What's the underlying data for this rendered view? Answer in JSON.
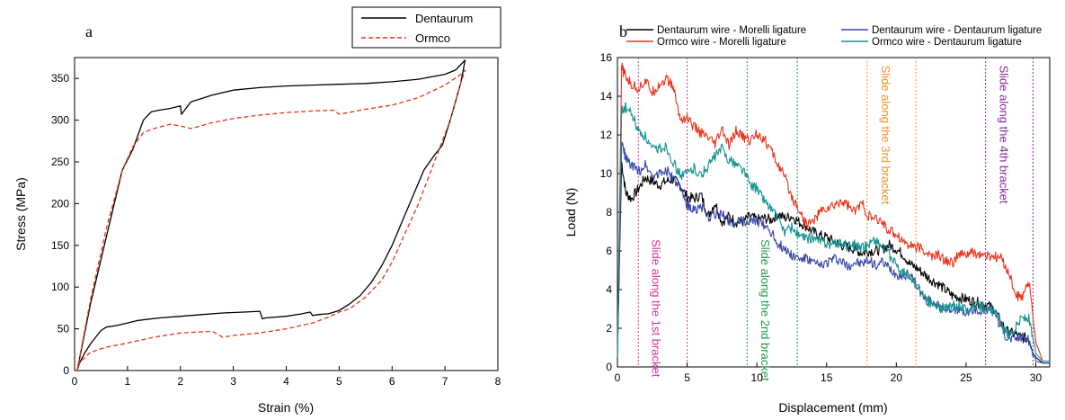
{
  "chart_data": [
    {
      "panel_label": "a",
      "type": "line",
      "xlabel": "Strain (%)",
      "ylabel": "Stress (MPa)",
      "xlim": [
        0,
        8
      ],
      "ylim": [
        0,
        375
      ],
      "xticks": [
        0,
        1,
        2,
        3,
        4,
        5,
        6,
        7,
        8
      ],
      "yticks": [
        0,
        50,
        100,
        150,
        200,
        250,
        300,
        350
      ],
      "legend_position": "top-right",
      "series": [
        {
          "name": "Dentaurum",
          "color": "#000000",
          "style": "solid",
          "x": [
            0.05,
            0.3,
            0.6,
            0.9,
            1.1,
            1.3,
            1.45,
            1.6,
            1.8,
            2.0,
            2.02,
            2.2,
            2.6,
            3.0,
            3.5,
            4.0,
            4.5,
            5.0,
            5.5,
            6.0,
            6.5,
            7.0,
            7.2,
            7.38,
            7.3,
            7.1,
            6.95,
            6.8,
            6.6,
            6.4,
            6.2,
            6.0,
            5.8,
            5.6,
            5.4,
            5.2,
            5.0,
            4.8,
            4.6,
            4.5,
            4.45,
            4.3,
            4.0,
            3.6,
            3.55,
            3.5,
            3.2,
            2.8,
            2.4,
            2.0,
            1.6,
            1.2,
            1.0,
            0.8,
            0.6,
            0.5,
            0.4,
            0.3,
            0.2,
            0.1,
            0.05
          ],
          "y": [
            0,
            80,
            160,
            240,
            265,
            300,
            310,
            312,
            314,
            317,
            307,
            322,
            330,
            336,
            339,
            341,
            342,
            343,
            344,
            346,
            349,
            355,
            360,
            372,
            345,
            300,
            270,
            258,
            240,
            210,
            180,
            150,
            125,
            105,
            90,
            80,
            72,
            68,
            67,
            66,
            70,
            68,
            65,
            63,
            62,
            71,
            70,
            69,
            67,
            65,
            63,
            60,
            57,
            54,
            52,
            48,
            40,
            32,
            22,
            10,
            0
          ]
        },
        {
          "name": "Ormco",
          "color": "#e8331c",
          "style": "dashed",
          "x": [
            0.05,
            0.3,
            0.6,
            0.9,
            1.1,
            1.3,
            1.5,
            1.8,
            2.0,
            2.2,
            2.6,
            3.0,
            3.5,
            4.0,
            4.5,
            4.9,
            5.0,
            5.5,
            6.0,
            6.5,
            7.0,
            7.3,
            7.38,
            7.3,
            7.1,
            6.8,
            6.5,
            6.2,
            6.0,
            5.8,
            5.5,
            5.2,
            5.0,
            4.8,
            4.5,
            4.0,
            3.5,
            3.0,
            2.8,
            2.6,
            2.0,
            1.5,
            1.0,
            0.6,
            0.3,
            0.1,
            0.05
          ],
          "y": [
            0,
            85,
            170,
            240,
            268,
            285,
            290,
            295,
            293,
            290,
            297,
            302,
            306,
            309,
            311,
            312,
            307,
            313,
            318,
            327,
            342,
            355,
            360,
            345,
            300,
            250,
            200,
            158,
            130,
            108,
            88,
            74,
            70,
            64,
            57,
            50,
            45,
            42,
            40,
            47,
            45,
            40,
            33,
            28,
            22,
            10,
            0
          ]
        }
      ]
    },
    {
      "panel_label": "b",
      "type": "line",
      "xlabel": "Displacement (mm)",
      "ylabel": "Load (N)",
      "xlim": [
        0,
        31
      ],
      "ylim": [
        0,
        16
      ],
      "xticks": [
        0,
        5,
        10,
        15,
        20,
        25,
        30
      ],
      "yticks": [
        0,
        2,
        4,
        6,
        8,
        10,
        12,
        14,
        16
      ],
      "legend_position": "top",
      "series": [
        {
          "name": "Dentaurum wire - Morelli ligature",
          "color": "#000000",
          "x": [
            0,
            0.3,
            0.6,
            1,
            1.5,
            2,
            2.5,
            3,
            3.5,
            4,
            4.5,
            5,
            5.5,
            6,
            6.5,
            7,
            7.5,
            8,
            8.5,
            9,
            9.5,
            10,
            10.5,
            11,
            11.5,
            12,
            12.5,
            13,
            13.5,
            14,
            14.5,
            15,
            15.5,
            16,
            16.5,
            17,
            17.5,
            18,
            18.5,
            19,
            19.5,
            20,
            20.5,
            21,
            21.5,
            22,
            22.5,
            23,
            23.5,
            24,
            24.5,
            25,
            25.5,
            26,
            26.5,
            27,
            27.5,
            28,
            28.5,
            29,
            29.5,
            30,
            30.5,
            31
          ],
          "y": [
            0.5,
            10.6,
            9.0,
            8.7,
            9.2,
            9.8,
            9.6,
            9.4,
            9.6,
            9.7,
            9.4,
            8.8,
            8.7,
            8.9,
            7.8,
            8.5,
            7.5,
            7.8,
            7.5,
            7.5,
            7.8,
            7.6,
            7.7,
            7.6,
            7.9,
            7.7,
            7.8,
            7.5,
            7.3,
            7.0,
            6.8,
            6.7,
            6.5,
            6.3,
            6.2,
            6.1,
            5.9,
            6.0,
            6.0,
            6.1,
            6.3,
            6.1,
            5.8,
            5.3,
            5.1,
            4.8,
            4.5,
            4.3,
            4.0,
            3.7,
            3.6,
            3.5,
            3.4,
            3.3,
            3.2,
            3.0,
            2.3,
            1.8,
            1.7,
            1.5,
            1.5,
            0.5,
            0.2,
            0.2
          ]
        },
        {
          "name": "Ormco wire - Morelli ligature",
          "color": "#e8331c",
          "x": [
            0,
            0.3,
            0.6,
            1,
            1.5,
            2,
            2.5,
            3,
            3.5,
            4,
            4.5,
            5,
            5.5,
            6,
            6.5,
            7,
            7.5,
            8,
            8.5,
            9,
            9.5,
            10,
            10.5,
            11,
            11.5,
            12,
            12.5,
            13,
            13.5,
            14,
            14.5,
            15,
            15.5,
            16,
            16.5,
            17,
            17.5,
            18,
            18.5,
            19,
            19.5,
            20,
            20.5,
            21,
            21.5,
            22,
            22.5,
            23,
            23.5,
            24,
            24.5,
            25,
            25.5,
            26,
            26.5,
            27,
            27.5,
            28,
            28.5,
            29,
            29.5,
            30,
            30.5,
            31
          ],
          "y": [
            0.5,
            15.5,
            15.0,
            14.6,
            14.4,
            14.8,
            14.2,
            14.6,
            14.9,
            14.5,
            12.8,
            12.9,
            12.4,
            12.1,
            11.8,
            11.5,
            12.3,
            11.4,
            12.2,
            11.9,
            11.7,
            12.1,
            11.8,
            11.2,
            10.5,
            9.8,
            8.8,
            8.2,
            7.4,
            7.5,
            8.0,
            8.2,
            8.3,
            8.6,
            8.4,
            8.0,
            8.5,
            7.8,
            7.6,
            7.5,
            7.0,
            6.9,
            6.5,
            6.3,
            6.2,
            6.0,
            5.7,
            5.8,
            5.5,
            5.4,
            5.8,
            5.8,
            5.9,
            5.8,
            5.7,
            5.7,
            5.6,
            5.0,
            3.8,
            3.5,
            4.4,
            1.3,
            0.3,
            0.3
          ]
        },
        {
          "name": "Dentaurum wire - Dentaurum ligature",
          "color": "#3545a6",
          "x": [
            0,
            0.3,
            0.6,
            1,
            1.5,
            2,
            2.5,
            3,
            3.5,
            4,
            4.5,
            5,
            5.5,
            6,
            6.5,
            7,
            7.5,
            8,
            8.5,
            9,
            9.5,
            10,
            10.5,
            11,
            11.5,
            12,
            12.5,
            13,
            13.5,
            14,
            14.5,
            15,
            15.5,
            16,
            16.5,
            17,
            17.5,
            18,
            18.5,
            19,
            19.5,
            20,
            20.5,
            21,
            21.5,
            22,
            22.5,
            23,
            23.5,
            24,
            24.5,
            25,
            25.5,
            26,
            26.5,
            27,
            27.5,
            28,
            28.5,
            29,
            29.5,
            30,
            30.5,
            31
          ],
          "y": [
            0.5,
            11.6,
            10.8,
            10.4,
            10.1,
            10.5,
            9.9,
            10.0,
            10.2,
            9.7,
            9.2,
            8.4,
            8.1,
            8.3,
            7.7,
            7.9,
            7.9,
            7.6,
            7.4,
            7.6,
            7.5,
            7.5,
            7.4,
            7.0,
            6.4,
            6.1,
            5.8,
            5.6,
            5.6,
            5.4,
            5.2,
            5.4,
            5.6,
            5.5,
            5.2,
            5.4,
            5.3,
            5.5,
            5.3,
            5.4,
            5.1,
            4.8,
            4.7,
            4.8,
            4.2,
            3.5,
            3.4,
            3.2,
            3.0,
            3.1,
            2.9,
            2.8,
            2.9,
            2.9,
            3.0,
            2.9,
            2.0,
            1.5,
            1.5,
            1.6,
            1.4,
            0.3,
            0.2,
            0.2
          ]
        },
        {
          "name": "Ormco wire - Dentaurum ligature",
          "color": "#15938f",
          "x": [
            0,
            0.3,
            0.6,
            1,
            1.5,
            2,
            2.5,
            3,
            3.5,
            4,
            4.5,
            5,
            5.5,
            6,
            6.5,
            7,
            7.5,
            8,
            8.5,
            9,
            9.5,
            10,
            10.5,
            11,
            11.5,
            12,
            12.5,
            13,
            13.5,
            14,
            14.5,
            15,
            15.5,
            16,
            16.5,
            17,
            17.5,
            18,
            18.5,
            19,
            19.5,
            20,
            20.5,
            21,
            21.5,
            22,
            22.5,
            23,
            23.5,
            24,
            24.5,
            25,
            25.5,
            26,
            26.5,
            27,
            27.5,
            28,
            28.5,
            29,
            29.5,
            30,
            30.5,
            31
          ],
          "y": [
            0.5,
            13.3,
            13.4,
            13.1,
            12.2,
            11.9,
            11.2,
            11.3,
            11.4,
            10.6,
            9.9,
            10.0,
            10.3,
            9.9,
            10.4,
            10.9,
            11.3,
            10.7,
            10.5,
            10.2,
            9.5,
            9.2,
            8.7,
            8.2,
            7.7,
            7.0,
            7.2,
            6.8,
            6.6,
            6.7,
            6.5,
            6.4,
            6.3,
            6.5,
            6.2,
            6.3,
            6.1,
            6.4,
            6.6,
            6.2,
            5.8,
            5.2,
            4.9,
            4.6,
            4.2,
            3.5,
            3.3,
            3.1,
            3.0,
            3.2,
            3.1,
            3.0,
            3.1,
            3.2,
            2.9,
            2.9,
            2.1,
            1.7,
            2.0,
            2.6,
            2.5,
            0.7,
            0.3,
            0.3
          ]
        }
      ],
      "annotations": [
        {
          "text": "Slide along the 1st bracket",
          "color": "#d6339a",
          "x_range": [
            1.5,
            5.0
          ]
        },
        {
          "text": "Slide along the 2nd bracket",
          "color": "#1f9a4a",
          "x_range": [
            9.3,
            12.9
          ]
        },
        {
          "text": "Slide along the 3rd bracket",
          "color": "#f2922e",
          "x_range": [
            17.9,
            21.4
          ]
        },
        {
          "text": "Slide along the 4th bracket",
          "color": "#8b2a9e",
          "x_range": [
            26.4,
            29.8
          ]
        }
      ]
    }
  ]
}
